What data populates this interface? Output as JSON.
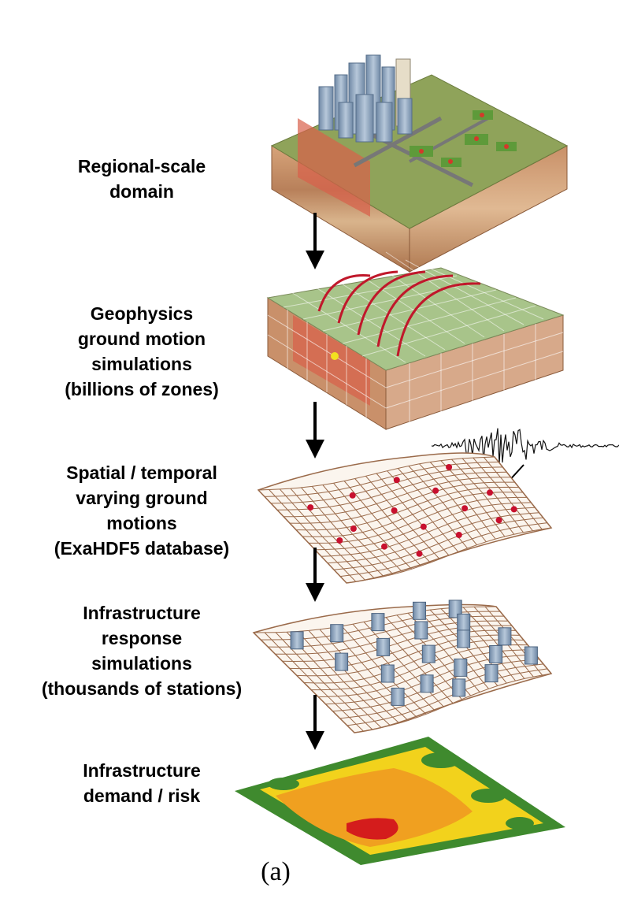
{
  "steps": [
    {
      "label": "Regional-scale\ndomain"
    },
    {
      "label": "Geophysics\nground motion\nsimulations\n(billions of zones)"
    },
    {
      "label": "Spatial / temporal\nvarying ground\nmotions\n(ExaHDF5 database)"
    },
    {
      "label": "Infrastructure\nresponse\nsimulations\n(thousands of stations)"
    },
    {
      "label": "Infrastructure\ndemand / risk"
    }
  ],
  "caption": "(a)",
  "colors": {
    "soil_top": "#8fa35a",
    "soil_side": "#c9956a",
    "fault_plane": "#d9604a",
    "wavefront": "#c0182b",
    "grid_line": "#9a6a4a",
    "station_dot": "#c8102e",
    "building": "#8fa6bf",
    "risk_green": "#3f8a2e",
    "risk_yellow": "#f2d21c",
    "risk_orange": "#f0a020",
    "risk_red": "#d41c1c"
  }
}
